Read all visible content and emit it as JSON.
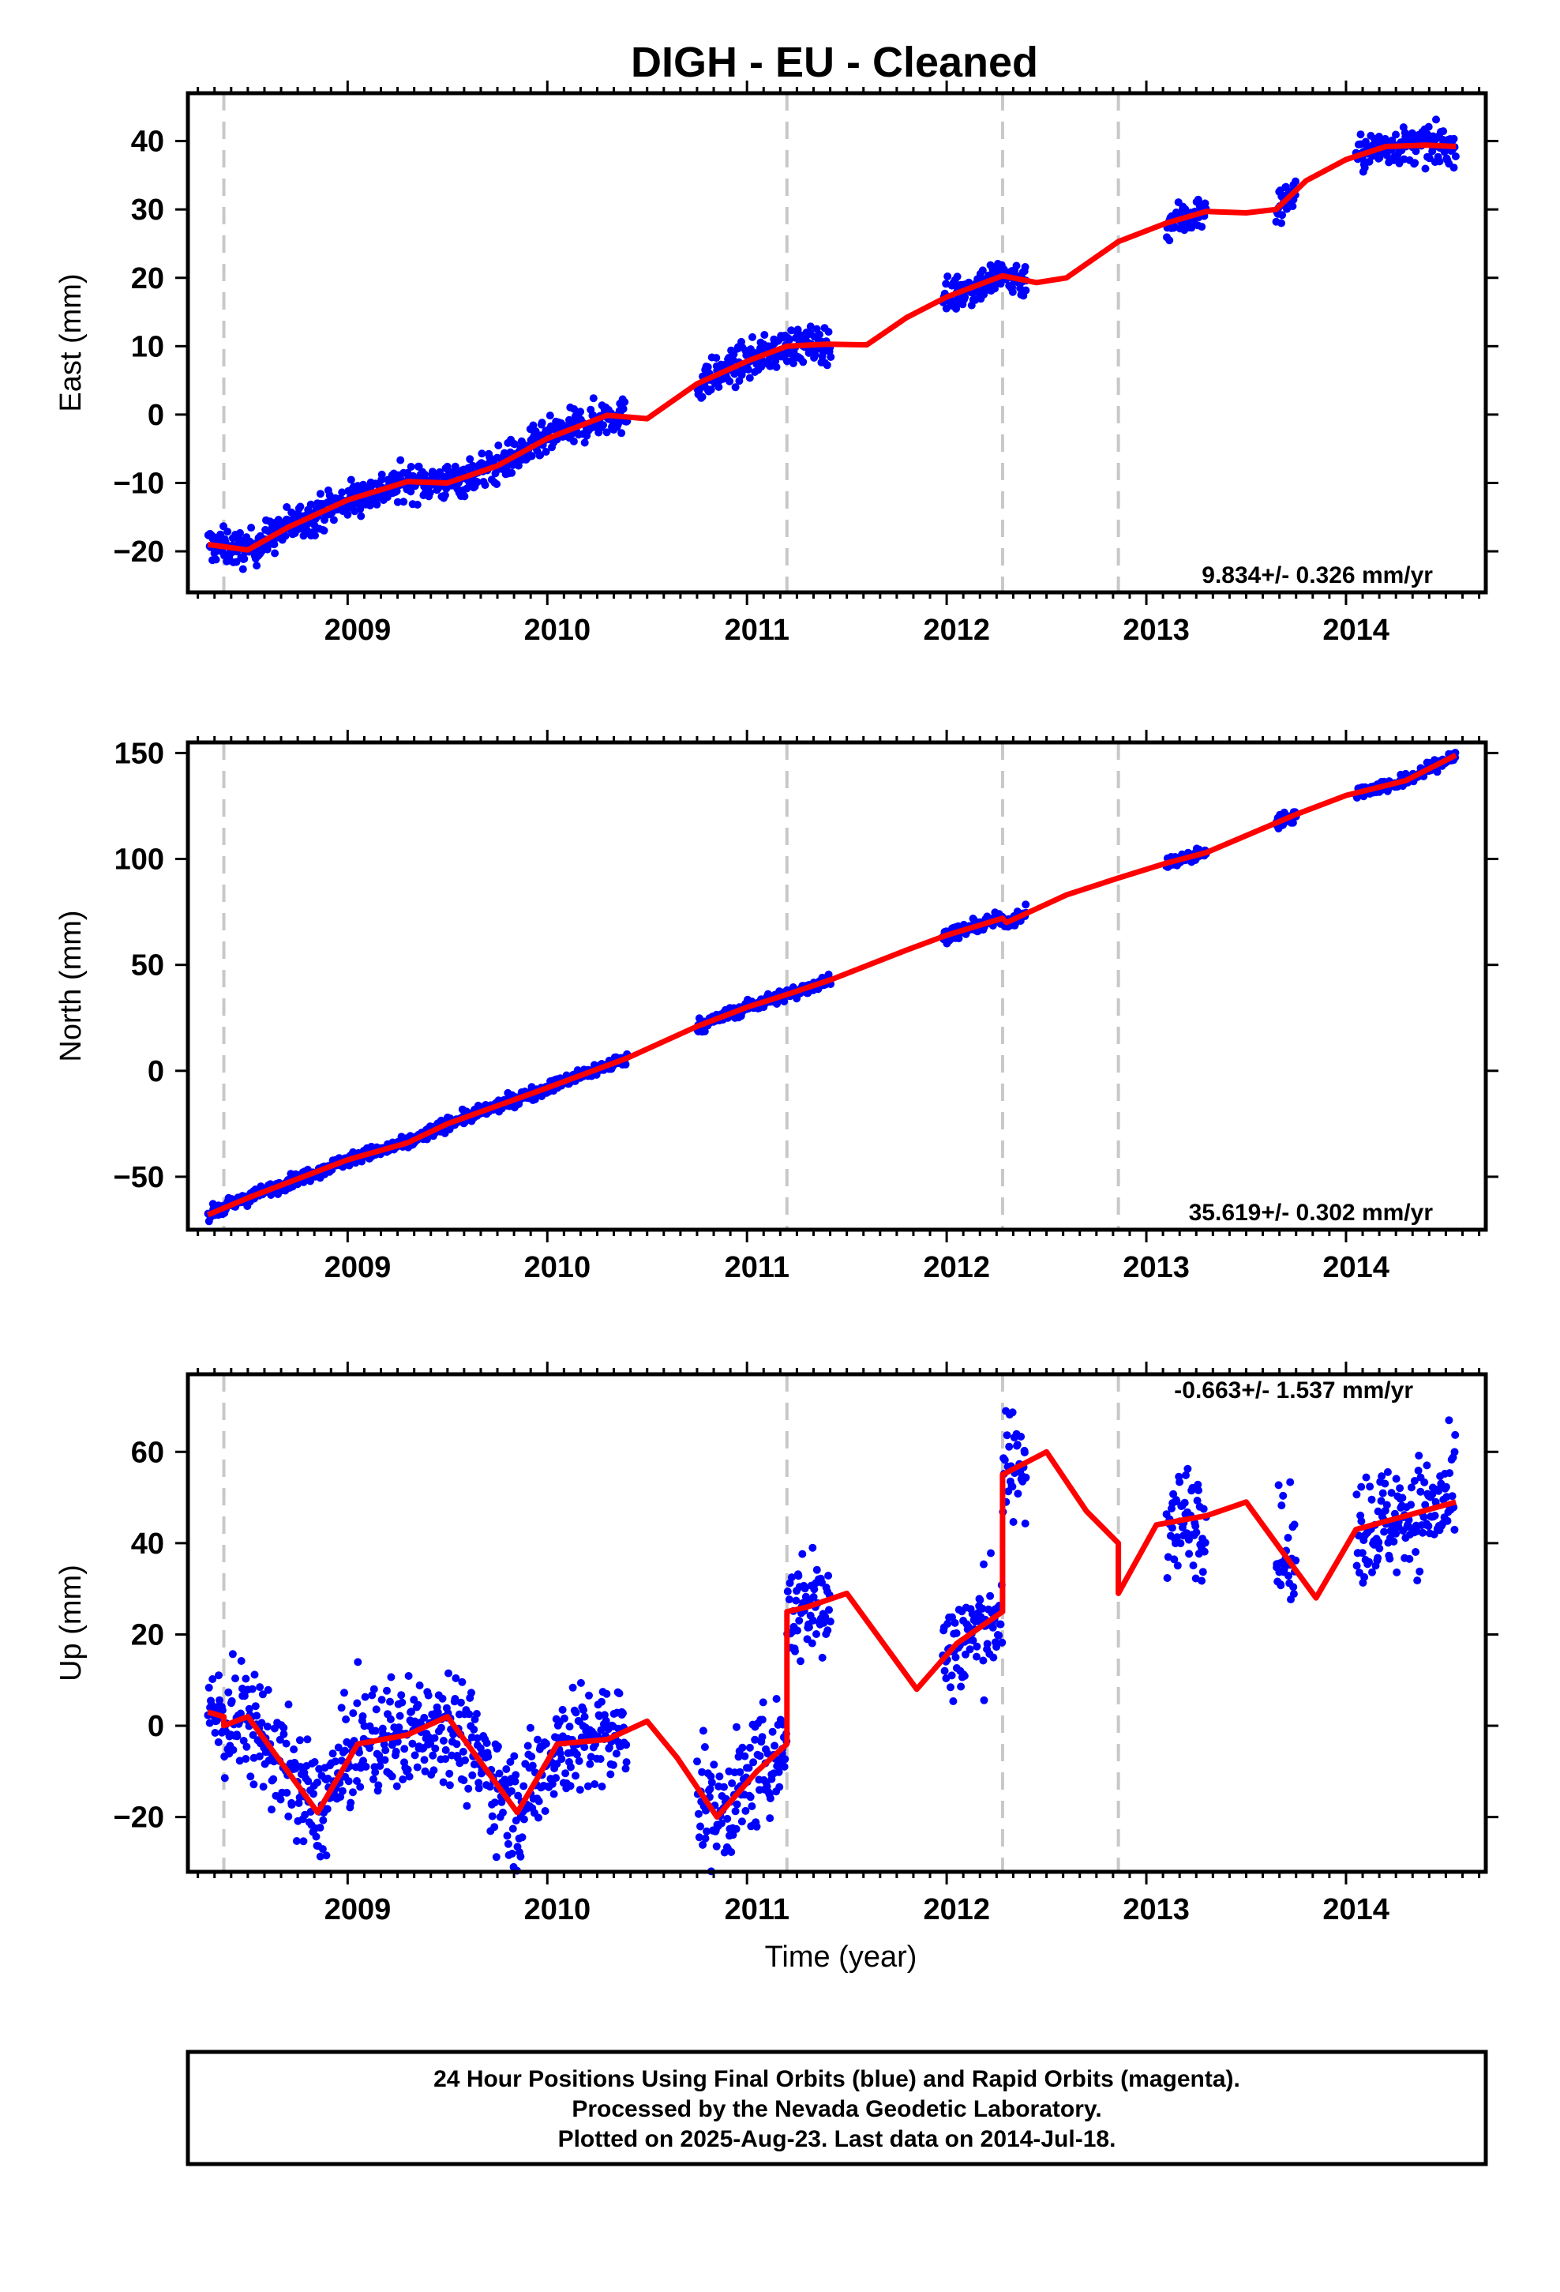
{
  "title": "DIGH  - EU - Cleaned",
  "caption": {
    "lines": [
      "24 Hour Positions Using Final Orbits (blue) and Rapid Orbits (magenta).",
      "Processed by the Nevada Geodetic Laboratory.",
      "Plotted on 2025-Aug-23. Last data on 2014-Jul-18."
    ]
  },
  "colors": {
    "data_points": "#0000ff",
    "model_fit": "#ff0000",
    "step_lines": "#c8c8c8",
    "axes": "#000000"
  },
  "chart_data": [
    {
      "type": "scatter",
      "name": "east",
      "xlabel": "",
      "ylabel": "East (mm)",
      "xlim": [
        2008.2,
        2014.7
      ],
      "ylim": [
        -26,
        47
      ],
      "x_ticks": [
        2009,
        2010,
        2011,
        2012,
        2013,
        2014
      ],
      "y_ticks": [
        -20,
        -10,
        0,
        10,
        20,
        30,
        40
      ],
      "grid": false,
      "rate_label": "9.834+/- 0.326 mm/yr",
      "step_epochs": [
        2008.38,
        2011.2,
        2012.28,
        2012.86
      ],
      "data_segments": [
        [
          2008.3,
          2010.4
        ],
        [
          2010.75,
          2011.42
        ],
        [
          2011.98,
          2012.4
        ],
        [
          2013.1,
          2013.3
        ],
        [
          2013.65,
          2013.75
        ],
        [
          2014.05,
          2014.55
        ]
      ],
      "points_per_year": 300,
      "noise_sd": 1.3,
      "model_fit": {
        "x": [
          2008.3,
          2008.5,
          2008.7,
          2009.0,
          2009.3,
          2009.5,
          2009.75,
          2010.0,
          2010.3,
          2010.5,
          2010.75,
          2011.0,
          2011.2,
          2011.4,
          2011.6,
          2011.8,
          2012.0,
          2012.28,
          2012.45,
          2012.6,
          2012.86,
          2013.1,
          2013.3,
          2013.5,
          2013.65,
          2013.8,
          2014.0,
          2014.2,
          2014.4,
          2014.55
        ],
        "y": [
          -19,
          -19.8,
          -16.5,
          -12.5,
          -9.8,
          -10,
          -7.5,
          -3.5,
          -0.1,
          -0.6,
          4.5,
          7.8,
          10,
          10.3,
          10.2,
          14.2,
          17.2,
          20.3,
          19.3,
          20,
          25.3,
          28,
          29.7,
          29.5,
          30,
          34.2,
          37.3,
          39.2,
          39.4,
          39.2
        ]
      }
    },
    {
      "type": "scatter",
      "name": "north",
      "xlabel": "",
      "ylabel": "North (mm)",
      "xlim": [
        2008.2,
        2014.7
      ],
      "ylim": [
        -75,
        155
      ],
      "x_ticks": [
        2009,
        2010,
        2011,
        2012,
        2013,
        2014
      ],
      "y_ticks": [
        -50,
        0,
        50,
        100,
        150
      ],
      "grid": false,
      "rate_label": "35.619+/- 0.302 mm/yr",
      "step_epochs": [
        2008.38,
        2011.2,
        2012.28,
        2012.86
      ],
      "data_segments": [
        [
          2008.3,
          2010.4
        ],
        [
          2010.75,
          2011.42
        ],
        [
          2011.98,
          2012.4
        ],
        [
          2013.1,
          2013.3
        ],
        [
          2013.65,
          2013.75
        ],
        [
          2014.05,
          2014.55
        ]
      ],
      "points_per_year": 300,
      "noise_sd": 1.5,
      "model_fit": {
        "x": [
          2008.3,
          2008.5,
          2009.0,
          2009.3,
          2009.5,
          2010.0,
          2010.4,
          2010.75,
          2011.0,
          2011.2,
          2011.42,
          2011.8,
          2012.0,
          2012.28,
          2012.3,
          2012.6,
          2012.86,
          2013.1,
          2013.3,
          2013.5,
          2013.75,
          2014.0,
          2014.3,
          2014.55
        ],
        "y": [
          -68,
          -60,
          -42,
          -34,
          -25,
          -8,
          6,
          21,
          30,
          36,
          43,
          57,
          64,
          72,
          70,
          83,
          91,
          98,
          103,
          111,
          121,
          130,
          137,
          149
        ]
      }
    },
    {
      "type": "scatter",
      "name": "up",
      "xlabel": "Time (year)",
      "ylabel": "Up (mm)",
      "xlim": [
        2008.2,
        2014.7
      ],
      "ylim": [
        -32,
        77
      ],
      "x_ticks": [
        2009,
        2010,
        2011,
        2012,
        2013,
        2014
      ],
      "y_ticks": [
        -20,
        0,
        20,
        40,
        60
      ],
      "grid": false,
      "rate_label": "-0.663+/- 1.537 mm/yr",
      "step_epochs": [
        2008.38,
        2011.2,
        2012.28,
        2012.86
      ],
      "data_segments": [
        [
          2008.3,
          2010.4
        ],
        [
          2010.75,
          2011.42
        ],
        [
          2011.98,
          2012.4
        ],
        [
          2013.1,
          2013.3
        ],
        [
          2013.65,
          2013.75
        ],
        [
          2014.05,
          2014.55
        ]
      ],
      "points_per_year": 300,
      "noise_sd": 6,
      "model_fit": {
        "x": [
          2008.3,
          2008.38,
          2008.38,
          2008.5,
          2008.65,
          2008.85,
          2009.05,
          2009.3,
          2009.5,
          2009.65,
          2009.85,
          2010.05,
          2010.3,
          2010.5,
          2010.65,
          2010.85,
          2011.05,
          2011.2,
          2011.2,
          2011.3,
          2011.5,
          2011.65,
          2011.85,
          2012.05,
          2012.28,
          2012.28,
          2012.5,
          2012.7,
          2012.86,
          2012.86,
          2013.05,
          2013.3,
          2013.5,
          2013.65,
          2013.85,
          2014.05,
          2014.3,
          2014.55
        ],
        "y": [
          3,
          2,
          0,
          2,
          -7,
          -19,
          -4,
          -2,
          2,
          -7,
          -19,
          -4,
          -3,
          1,
          -7,
          -20,
          -10,
          -4,
          25,
          26,
          29,
          20,
          8,
          18,
          25,
          55,
          60,
          47,
          40,
          29,
          44,
          46,
          49,
          40,
          28,
          43,
          46,
          49
        ]
      }
    }
  ]
}
